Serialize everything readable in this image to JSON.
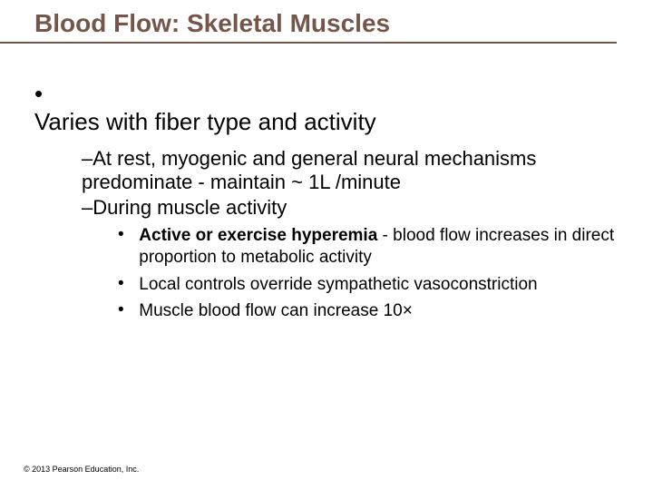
{
  "title": "Blood Flow: Skeletal Muscles",
  "colors": {
    "title_color": "#74564a",
    "title_underline": "#74564a",
    "text_color": "#000000",
    "background": "#ffffff"
  },
  "typography": {
    "title_fontsize": 28,
    "level1_fontsize": 26,
    "level2_fontsize": 22,
    "level3_fontsize": 19,
    "footer_fontsize": 9,
    "font_family": "Arial"
  },
  "bullets": {
    "level1": [
      {
        "text": "Varies with fiber type and activity",
        "level2": [
          {
            "prefix": "– ",
            "text": "At rest, myogenic and general neural mechanisms predominate - maintain ~ 1L /minute"
          },
          {
            "prefix": "– ",
            "text": "During muscle activity",
            "level3": [
              {
                "bold_lead": "Active or exercise hyperemia",
                "rest": " - blood flow increases in direct proportion to metabolic activity"
              },
              {
                "bold_lead": "",
                "rest": "Local controls override sympathetic vasoconstriction"
              },
              {
                "bold_lead": "",
                "rest": "Muscle blood flow can increase 10×"
              }
            ]
          }
        ]
      }
    ]
  },
  "footer": "© 2013 Pearson Education, Inc."
}
